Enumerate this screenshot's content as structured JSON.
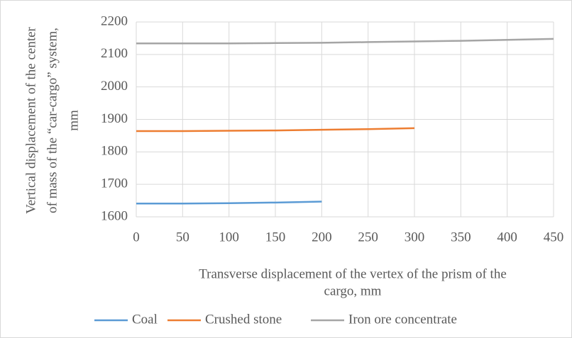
{
  "chart_data": {
    "type": "line",
    "ylabel": [
      "Vertical displacement  of the center",
      "of mass of the “car-cargo”  system,",
      "mm"
    ],
    "xlabel": [
      "Transverse displacement  of the vertex of the prism of the",
      "cargo,  mm"
    ],
    "xlim": [
      0,
      450
    ],
    "xticks": [
      0,
      50,
      100,
      150,
      200,
      250,
      300,
      350,
      400,
      450
    ],
    "ylim": [
      1600,
      2200
    ],
    "yticks": [
      1600,
      1700,
      1800,
      1900,
      2000,
      2100,
      2200
    ],
    "grid": true,
    "legend": "bottom",
    "series": [
      {
        "name": "Coal",
        "color": "#5b9bd5",
        "x": [
          0,
          50,
          100,
          150,
          200
        ],
        "values": [
          1641,
          1641,
          1642,
          1644,
          1647
        ]
      },
      {
        "name": "Crushed stone",
        "color": "#ed7d31",
        "x": [
          0,
          50,
          100,
          150,
          200,
          250,
          300
        ],
        "values": [
          1864,
          1864,
          1865,
          1866,
          1868,
          1870,
          1873
        ]
      },
      {
        "name": "Iron ore concentrate",
        "color": "#a5a5a5",
        "x": [
          0,
          50,
          100,
          150,
          200,
          250,
          300,
          350,
          400,
          450
        ],
        "values": [
          2134,
          2134,
          2134,
          2135,
          2136,
          2138,
          2140,
          2142,
          2145,
          2148
        ]
      }
    ]
  }
}
